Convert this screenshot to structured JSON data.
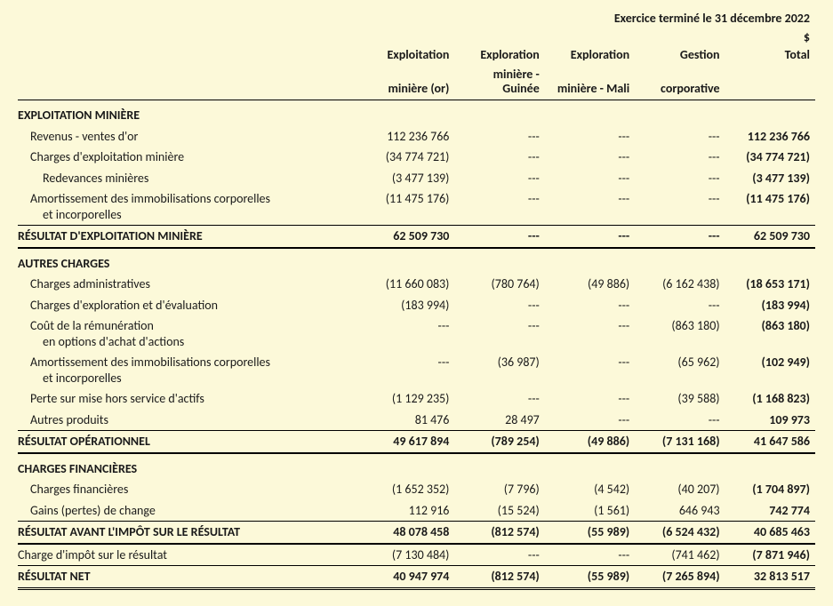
{
  "meta": {
    "period_title": "Exercice terminé le 31 décembre 2022",
    "currency": "$"
  },
  "columns": {
    "c1a": "Exploitation",
    "c1b": "minière (or)",
    "c2a": "Exploration",
    "c2b": "minière - Guinée",
    "c3a": "Exploration",
    "c3b": "minière  - Mali",
    "c4a": "Gestion",
    "c4b": "corporative",
    "c5": "Total"
  },
  "sections": {
    "exploitation_title": "EXPLOITATION MINIÈRE",
    "autres_charges_title": "AUTRES CHARGES",
    "charges_fin_title": "CHARGES FINANCIÈRES"
  },
  "rows": {
    "rev": {
      "label": "Revenus - ventes d'or",
      "c1": "112 236 766",
      "c2": "---",
      "c3": "---",
      "c4": "---",
      "c5": "112 236 766"
    },
    "chg_exp": {
      "label": "Charges d'exploitation minière",
      "c1": "(34 774 721)",
      "c2": "---",
      "c3": "---",
      "c4": "---",
      "c5": "(34 774 721)"
    },
    "redev": {
      "label": "Redevances minières",
      "c1": "(3 477 139)",
      "c2": "---",
      "c3": "---",
      "c4": "---",
      "c5": "(3 477 139)"
    },
    "amort1": {
      "label_a": "Amortissement des immobilisations corporelles",
      "label_b": "et incorporelles",
      "c1": "(11 475 176)",
      "c2": "---",
      "c3": "---",
      "c4": "---",
      "c5": "(11 475 176)"
    },
    "res_exp": {
      "label": "RÉSULTAT D'EXPLOITATION MINIÈRE",
      "c1": "62 509 730",
      "c2": "---",
      "c3": "---",
      "c4": "---",
      "c5": "62 509 730"
    },
    "chg_admin": {
      "label": "Charges administratives",
      "c1": "(11 660 083)",
      "c2": "(780 764)",
      "c3": "(49 886)",
      "c4": "(6 162 438)",
      "c5": "(18 653 171)"
    },
    "chg_explo": {
      "label": "Charges d'exploration et d'évaluation",
      "c1": "(183 994)",
      "c2": "---",
      "c3": "---",
      "c4": "---",
      "c5": "(183 994)"
    },
    "cout_rem": {
      "label_a": "Coût de la rémunération",
      "label_b": "en options d'achat d'actions",
      "c1": "---",
      "c2": "---",
      "c3": "---",
      "c4": "(863 180)",
      "c5": "(863 180)"
    },
    "amort2": {
      "label_a": "Amortissement des immobilisations corporelles",
      "label_b": "et incorporelles",
      "c1": "---",
      "c2": "(36 987)",
      "c3": "---",
      "c4": "(65 962)",
      "c5": "(102 949)"
    },
    "perte": {
      "label": "Perte sur mise hors service d'actifs",
      "c1": "(1 129 235)",
      "c2": "---",
      "c3": "---",
      "c4": "(39 588)",
      "c5": "(1 168 823)"
    },
    "autres_prod": {
      "label": "Autres produits",
      "c1": "81 476",
      "c2": "28 497",
      "c3": "---",
      "c4": "---",
      "c5": "109 973"
    },
    "res_op": {
      "label": "RÉSULTAT OPÉRATIONNEL",
      "c1": "49 617 894",
      "c2": "(789 254)",
      "c3": "(49 886)",
      "c4": "(7 131 168)",
      "c5": "41 647 586"
    },
    "chg_fin": {
      "label": "Charges financières",
      "c1": "(1 652 352)",
      "c2": "(7 796)",
      "c3": "(4 542)",
      "c4": "(40 207)",
      "c5": "(1 704 897)"
    },
    "gains_fx": {
      "label": "Gains (pertes) de change",
      "c1": "112 916",
      "c2": "(15 524)",
      "c3": "(1 561)",
      "c4": "646 943",
      "c5": "742 774"
    },
    "res_avant": {
      "label": "RÉSULTAT AVANT L'IMPÔT SUR LE RÉSULTAT",
      "c1": "48 078 458",
      "c2": "(812 574)",
      "c3": "(55 989)",
      "c4": "(6 524 432)",
      "c5": "40 685 463"
    },
    "impot": {
      "label": "Charge d'impôt sur le résultat",
      "c1": "(7 130 484)",
      "c2": "---",
      "c3": "---",
      "c4": "(741 462)",
      "c5": "(7 871 946)"
    },
    "res_net": {
      "label": "RÉSULTAT NET",
      "c1": "40 947 974",
      "c2": "(812 574)",
      "c3": "(55 989)",
      "c4": "(7 265 894)",
      "c5": "32 813 517"
    }
  }
}
